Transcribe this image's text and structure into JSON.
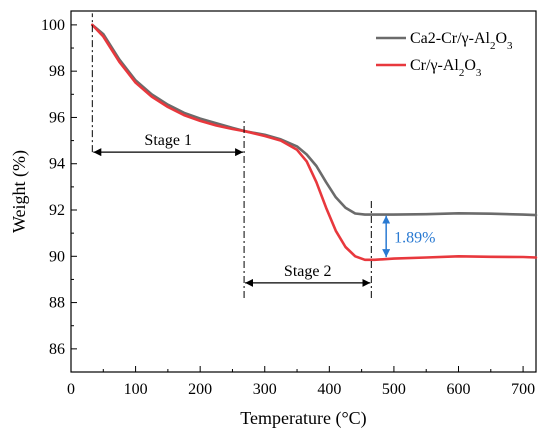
{
  "chart_data": {
    "type": "line",
    "xlabel": "Temperature (°C)",
    "ylabel": "Weight (%)",
    "xlim": [
      0,
      720
    ],
    "ylim": [
      85,
      100.6
    ],
    "xticks": [
      0,
      100,
      200,
      300,
      400,
      500,
      600,
      700
    ],
    "yticks": [
      86,
      88,
      90,
      92,
      94,
      96,
      98,
      100
    ],
    "legend_position": "top-right",
    "series": [
      {
        "name": "Ca2-Cr/γ-Al2O3",
        "legend_text": {
          "main": "Ca2-Cr/γ-Al",
          "sub1": "2",
          "mid": "O",
          "sub2": "3"
        },
        "color": "#6b6b6b",
        "x": [
          33,
          50,
          75,
          100,
          125,
          150,
          175,
          200,
          225,
          250,
          270,
          300,
          325,
          350,
          365,
          380,
          395,
          410,
          425,
          440,
          455,
          470,
          500,
          550,
          600,
          650,
          700,
          720
        ],
        "y": [
          100.0,
          99.6,
          98.5,
          97.6,
          97.0,
          96.55,
          96.2,
          95.95,
          95.75,
          95.55,
          95.4,
          95.25,
          95.05,
          94.75,
          94.4,
          93.9,
          93.2,
          92.55,
          92.1,
          91.85,
          91.8,
          91.8,
          91.8,
          91.82,
          91.86,
          91.84,
          91.8,
          91.78
        ]
      },
      {
        "name": "Cr/γ-Al2O3",
        "legend_text": {
          "main": "Cr/γ-Al",
          "sub1": "2",
          "mid": "O",
          "sub2": "3"
        },
        "color": "#e8383d",
        "x": [
          33,
          50,
          75,
          100,
          125,
          150,
          175,
          200,
          225,
          250,
          270,
          300,
          325,
          350,
          365,
          380,
          395,
          410,
          425,
          440,
          455,
          470,
          500,
          550,
          600,
          650,
          700,
          720
        ],
        "y": [
          100.0,
          99.5,
          98.4,
          97.5,
          96.9,
          96.45,
          96.1,
          95.85,
          95.65,
          95.5,
          95.4,
          95.2,
          95.0,
          94.6,
          94.1,
          93.2,
          92.1,
          91.1,
          90.4,
          90.0,
          89.85,
          89.85,
          89.9,
          89.95,
          90.0,
          89.98,
          89.97,
          89.95
        ]
      }
    ],
    "annotations": {
      "stage1": {
        "label": "Stage 1",
        "x_from": 33,
        "x_to": 268,
        "y": 94.5
      },
      "stage2": {
        "label": "Stage 2",
        "x_from": 268,
        "x_to": 465,
        "y": 88.85
      },
      "dash_lines": [
        {
          "x": 33,
          "y_from": 94.5,
          "y_to": 100.5
        },
        {
          "x": 268,
          "y_from": 88.2,
          "y_to": 95.9
        },
        {
          "x": 465,
          "y_from": 88.2,
          "y_to": 92.4
        }
      ],
      "difference": {
        "label": "1.89%",
        "x": 488,
        "y_from": 89.92,
        "y_to": 91.8
      }
    }
  }
}
